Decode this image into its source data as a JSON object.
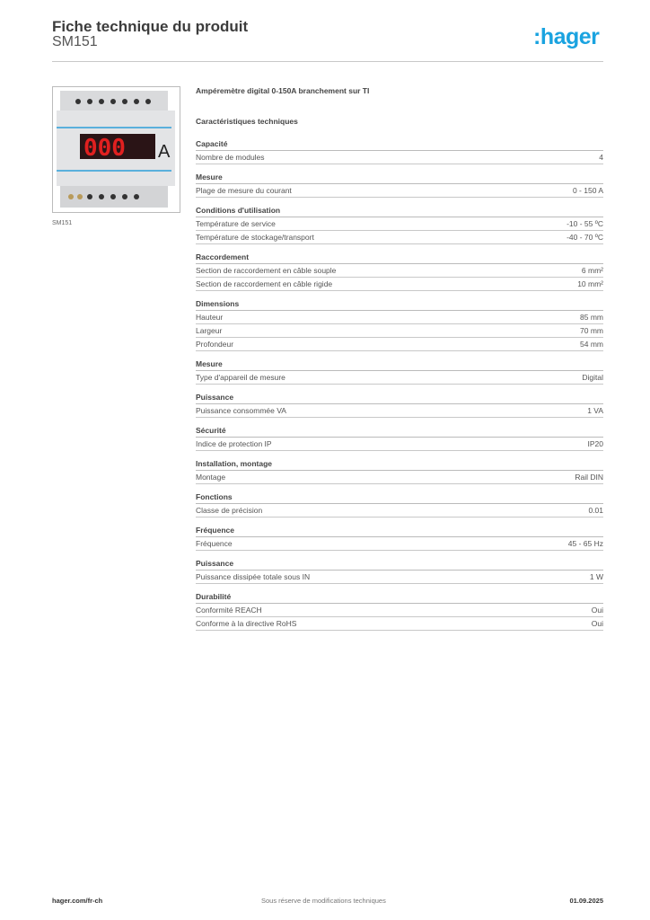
{
  "header": {
    "title": "Fiche technique du produit",
    "subtitle": "SM151",
    "logo": ":hager"
  },
  "colors": {
    "brand": "#1aa3e0"
  },
  "product": {
    "image_caption": "SM151",
    "display_digits": "000",
    "display_unit": "A",
    "description": "Ampéremètre digital 0-150A branchement sur TI",
    "characteristics_title": "Caractéristiques techniques"
  },
  "sections": [
    {
      "title": "Capacité",
      "rows": [
        {
          "label": "Nombre de modules",
          "value": "4"
        }
      ]
    },
    {
      "title": "Mesure",
      "rows": [
        {
          "label": "Plage de mesure du courant",
          "value": "0 - 150 A"
        }
      ]
    },
    {
      "title": "Conditions d'utilisation",
      "rows": [
        {
          "label": "Température de service",
          "value": "-10 - 55 ºC"
        },
        {
          "label": "Température de stockage/transport",
          "value": "-40 - 70 ºC"
        }
      ]
    },
    {
      "title": "Raccordement",
      "rows": [
        {
          "label": "Section de raccordement en câble souple",
          "value": "6 mm²"
        },
        {
          "label": "Section de raccordement en câble rigide",
          "value": "10 mm²"
        }
      ]
    },
    {
      "title": "Dimensions",
      "rows": [
        {
          "label": "Hauteur",
          "value": "85 mm"
        },
        {
          "label": "Largeur",
          "value": "70 mm"
        },
        {
          "label": "Profondeur",
          "value": "54 mm"
        }
      ]
    },
    {
      "title": "Mesure",
      "rows": [
        {
          "label": "Type d'appareil de mesure",
          "value": "Digital"
        }
      ]
    },
    {
      "title": "Puissance",
      "rows": [
        {
          "label": "Puissance consommée VA",
          "value": "1 VA"
        }
      ]
    },
    {
      "title": "Sécurité",
      "rows": [
        {
          "label": "Indice de protection IP",
          "value": "IP20"
        }
      ]
    },
    {
      "title": "Installation, montage",
      "rows": [
        {
          "label": "Montage",
          "value": "Rail DIN"
        }
      ]
    },
    {
      "title": "Fonctions",
      "rows": [
        {
          "label": "Classe de précision",
          "value": "0.01"
        }
      ]
    },
    {
      "title": "Fréquence",
      "rows": [
        {
          "label": "Fréquence",
          "value": "45 - 65 Hz"
        }
      ]
    },
    {
      "title": "Puissance",
      "rows": [
        {
          "label": "Puissance dissipée totale sous IN",
          "value": "1 W"
        }
      ]
    },
    {
      "title": "Durabilité",
      "rows": [
        {
          "label": "Conformité REACH",
          "value": "Oui"
        },
        {
          "label": "Conforme à la directive RoHS",
          "value": "Oui"
        }
      ]
    }
  ],
  "footer": {
    "website": "hager.com/fr-ch",
    "disclaimer": "Sous réserve de modifications techniques",
    "date": "01.09.2025"
  }
}
